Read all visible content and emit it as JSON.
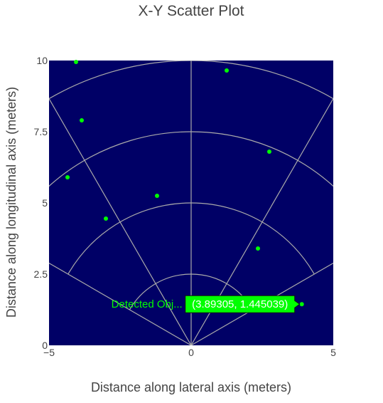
{
  "chart_data": {
    "type": "scatter",
    "title": "X-Y Scatter Plot",
    "xlabel": "Distance along lateral axis (meters)",
    "ylabel": "Distance along longitudinal axis (meters)",
    "xlim": [
      -5,
      5
    ],
    "ylim": [
      0,
      10
    ],
    "x_ticks": [
      -5,
      0,
      5
    ],
    "x_tick_labels": [
      "−5",
      "0",
      "5"
    ],
    "y_ticks": [
      0,
      2.5,
      5,
      7.5,
      10
    ],
    "y_tick_labels": [
      "0",
      "2.5",
      "5",
      "7.5",
      "10"
    ],
    "grid": false,
    "colors": {
      "plot_background": "#000066",
      "marker": "#00ff00",
      "overlay_lines": "#aaaaaa",
      "hover_label_bg": "#00ff00",
      "hover_label_text": "#ffffff",
      "hover_name_text": "#00ff00"
    },
    "coverage_overlay": {
      "range_arcs": [
        2.5,
        5,
        7.5,
        10
      ],
      "radial_angles_deg": [
        -60,
        -30,
        0,
        30,
        60
      ]
    },
    "series": [
      {
        "name": "Detected Obj...",
        "x": [
          -4.05,
          -3.85,
          -4.35,
          -1.2,
          -3.0,
          1.25,
          2.75,
          2.35,
          3.89305
        ],
        "y": [
          9.95,
          7.9,
          5.9,
          5.25,
          4.45,
          9.65,
          6.8,
          3.4,
          1.445039
        ]
      }
    ],
    "hover": {
      "series_name": "Detected Obj...",
      "text": "(3.89305, 1.445039)",
      "x": 3.89305,
      "y": 1.445039
    }
  }
}
